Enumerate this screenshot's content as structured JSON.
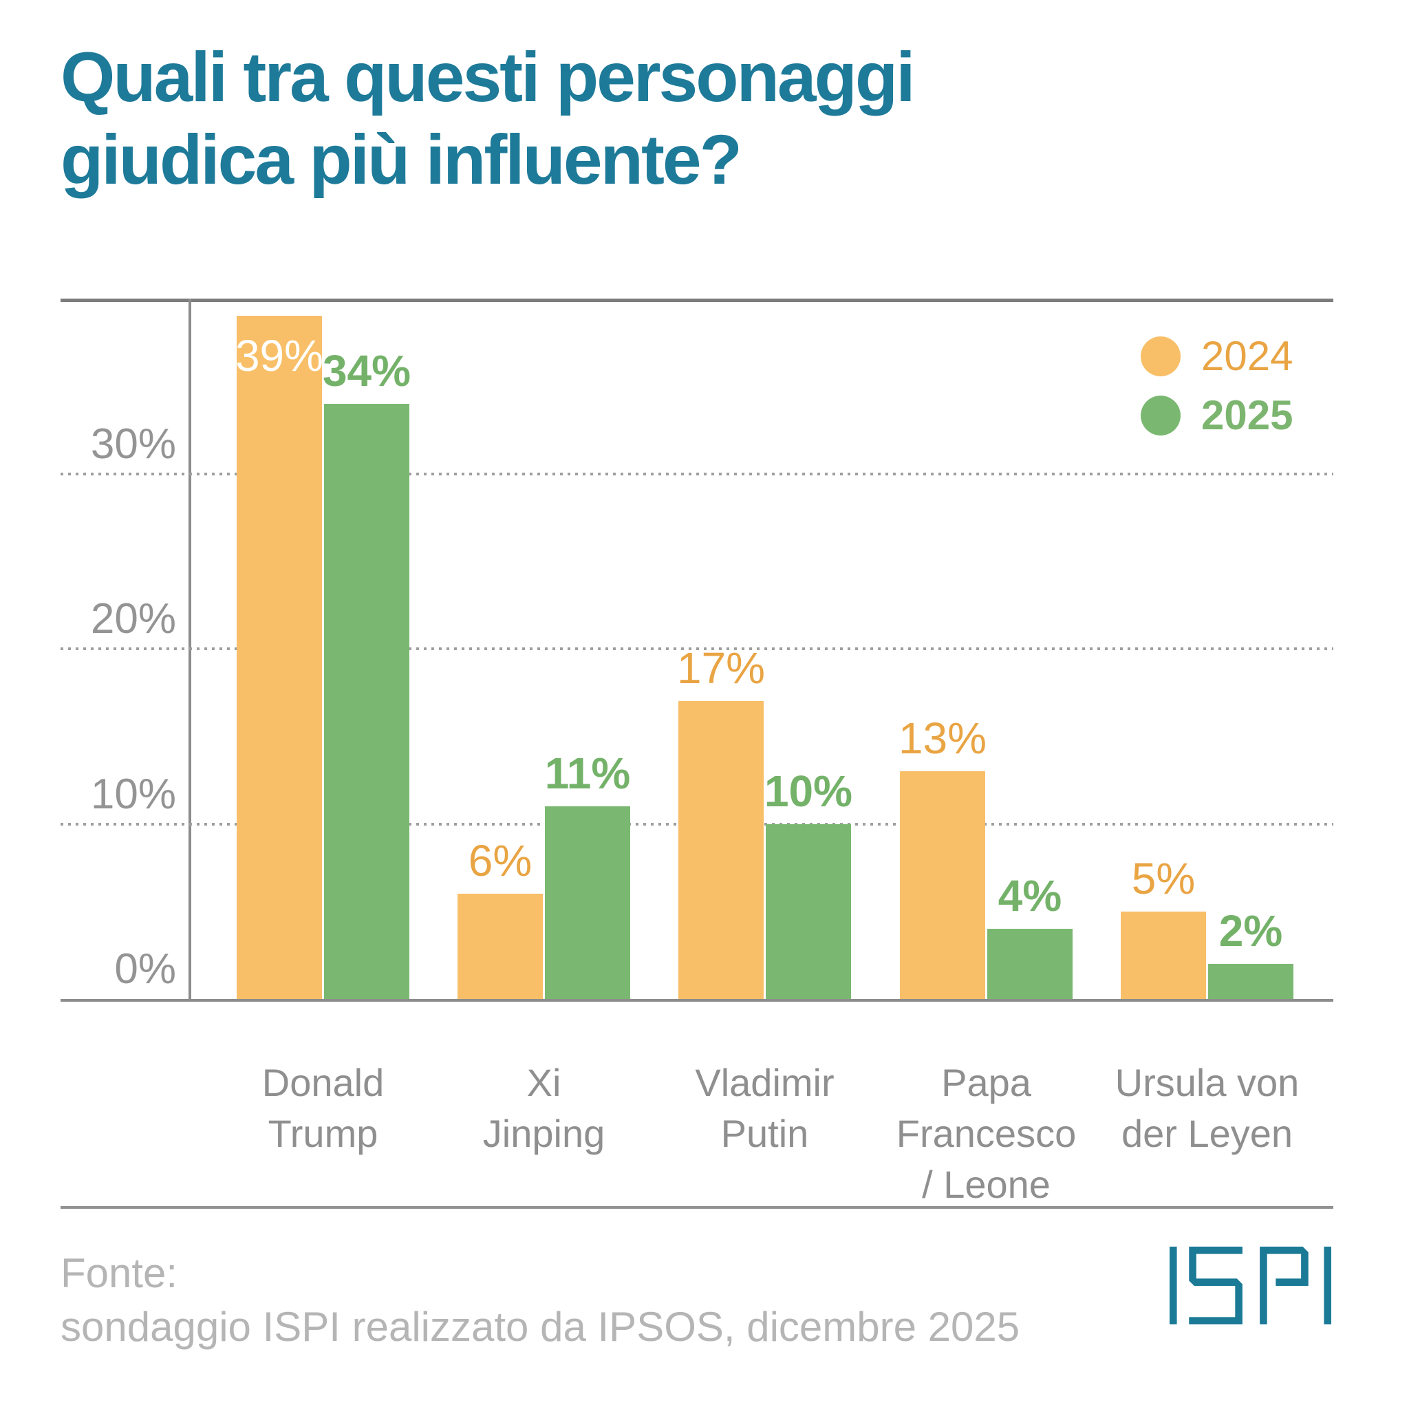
{
  "header": {
    "title": "Quali tra questi personaggi\ngiudica più influente?",
    "title_color": "#1E7A99"
  },
  "legend": {
    "position": "top-right",
    "items": [
      {
        "label": "2024",
        "color": "#F8BF68",
        "text_color": "#E9A443",
        "bold": false
      },
      {
        "label": "2025",
        "color": "#7AB871",
        "text_color": "#7CB56F",
        "bold": true
      }
    ]
  },
  "chart_data": {
    "type": "bar",
    "title": "Quali tra questi personaggi giudica più influente?",
    "categories": [
      "Donald Trump",
      "Xi Jinping",
      "Vladimir Putin",
      "Papa Francesco / Leone",
      "Ursula von der Leyen"
    ],
    "category_display": [
      "Donald\nTrump",
      "Xi\nJinping",
      "Vladimir\nPutin",
      "Papa\nFrancesco\n/ Leone",
      "Ursula von\nder Leyen"
    ],
    "series": [
      {
        "name": "2024",
        "color": "#F8BF68",
        "label_color": "#E9A443",
        "values": [
          39,
          6,
          17,
          13,
          5
        ],
        "label_placement": [
          "inside",
          "above",
          "above",
          "above",
          "above"
        ],
        "label_bold": false
      },
      {
        "name": "2025",
        "color": "#7AB871",
        "label_color": "#74B269",
        "values": [
          34,
          11,
          10,
          4,
          2
        ],
        "label_placement": [
          "above",
          "above",
          "above",
          "above",
          "above"
        ],
        "label_bold": true
      }
    ],
    "value_suffix": "%",
    "ylim": [
      0,
      40
    ],
    "yticks": [
      {
        "value": 0,
        "label": "0%"
      },
      {
        "value": 10,
        "label": "10%"
      },
      {
        "value": 20,
        "label": "20%"
      },
      {
        "value": 30,
        "label": "30%"
      }
    ],
    "grid": "dotted-horizontal",
    "inside_label_color": "#FFFFFF"
  },
  "footer": {
    "source_label": "Fonte:",
    "source_text": "sondaggio ISPI realizzato da IPSOS, dicembre 2025",
    "logo_text": "ISPI",
    "logo_color": "#1B7A96"
  }
}
